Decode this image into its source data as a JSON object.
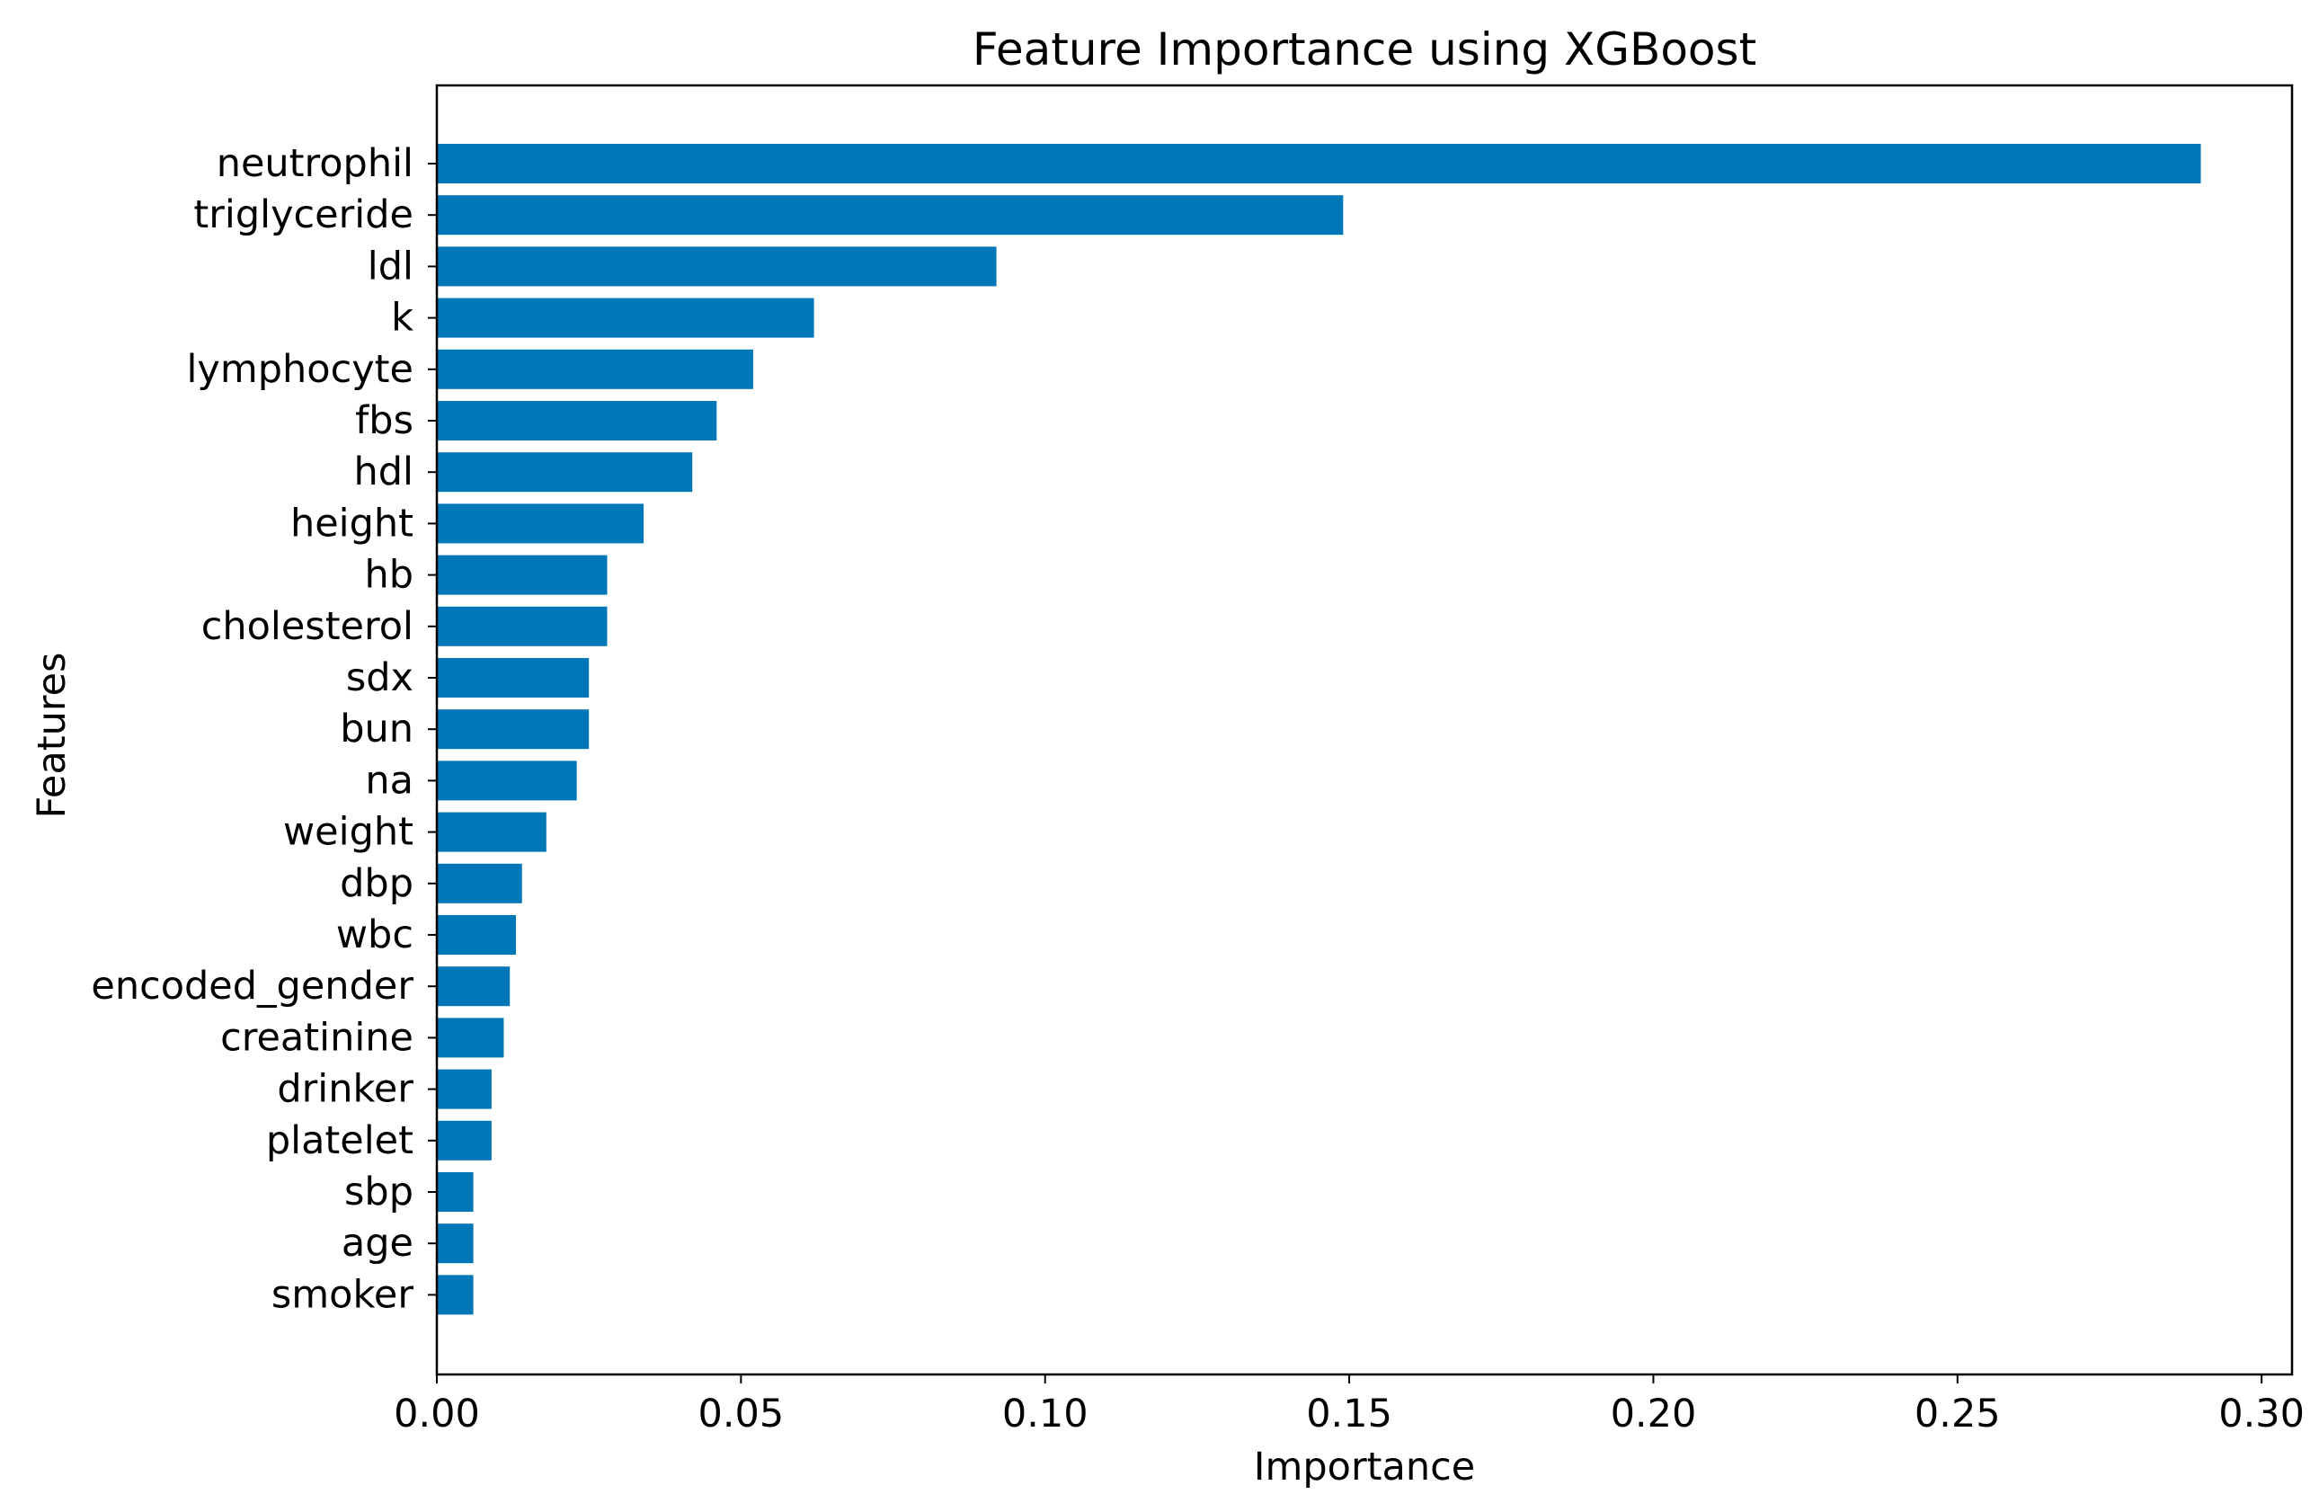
{
  "chart_data": {
    "type": "bar",
    "orientation": "horizontal",
    "title": "Feature Importance using XGBoost",
    "xlabel": "Importance",
    "ylabel": "Features",
    "categories": [
      "neutrophil",
      "triglyceride",
      "ldl",
      "k",
      "lymphocyte",
      "fbs",
      "hdl",
      "height",
      "hb",
      "cholesterol",
      "sdx",
      "bun",
      "na",
      "weight",
      "dbp",
      "wbc",
      "encoded_gender",
      "creatinine",
      "drinker",
      "platelet",
      "sbp",
      "age",
      "smoker"
    ],
    "values": [
      0.29,
      0.149,
      0.092,
      0.062,
      0.052,
      0.046,
      0.042,
      0.034,
      0.028,
      0.028,
      0.025,
      0.025,
      0.023,
      0.018,
      0.014,
      0.013,
      0.012,
      0.011,
      0.009,
      0.009,
      0.006,
      0.006,
      0.006
    ],
    "xlim": [
      0,
      0.305
    ],
    "xticks": [
      "0.00",
      "0.05",
      "0.10",
      "0.15",
      "0.20",
      "0.25",
      "0.30"
    ],
    "grid": false,
    "bar_color": "#0077b6"
  }
}
